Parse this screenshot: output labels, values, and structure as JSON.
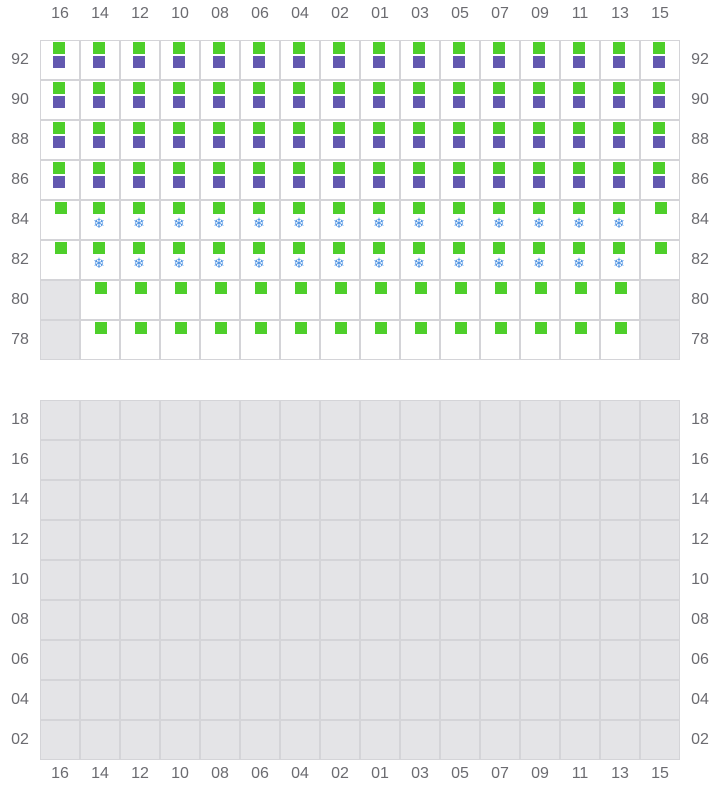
{
  "columns": [
    "16",
    "14",
    "12",
    "10",
    "08",
    "06",
    "04",
    "02",
    "01",
    "03",
    "05",
    "07",
    "09",
    "11",
    "13",
    "15"
  ],
  "colors": {
    "green": "#4ecf2a",
    "purple": "#6359b0",
    "unavailable": "#e4e4e7",
    "snow": "#4a90e2"
  },
  "icons": {
    "snow": "snowflake-icon",
    "snow_glyph": "❄"
  },
  "top_section": {
    "rows": [
      {
        "label": "92",
        "cells": [
          "gp",
          "gp",
          "gp",
          "gp",
          "gp",
          "gp",
          "gp",
          "gp",
          "gp",
          "gp",
          "gp",
          "gp",
          "gp",
          "gp",
          "gp",
          "gp"
        ]
      },
      {
        "label": "90",
        "cells": [
          "gp",
          "gp",
          "gp",
          "gp",
          "gp",
          "gp",
          "gp",
          "gp",
          "gp",
          "gp",
          "gp",
          "gp",
          "gp",
          "gp",
          "gp",
          "gp"
        ]
      },
      {
        "label": "88",
        "cells": [
          "gp",
          "gp",
          "gp",
          "gp",
          "gp",
          "gp",
          "gp",
          "gp",
          "gp",
          "gp",
          "gp",
          "gp",
          "gp",
          "gp",
          "gp",
          "gp"
        ]
      },
      {
        "label": "86",
        "cells": [
          "gp",
          "gp",
          "gp",
          "gp",
          "gp",
          "gp",
          "gp",
          "gp",
          "gp",
          "gp",
          "gp",
          "gp",
          "gp",
          "gp",
          "gp",
          "gp"
        ]
      },
      {
        "label": "84",
        "cells": [
          "g",
          "gs",
          "gs",
          "gs",
          "gs",
          "gs",
          "gs",
          "gs",
          "gs",
          "gs",
          "gs",
          "gs",
          "gs",
          "gs",
          "gs",
          "g"
        ]
      },
      {
        "label": "82",
        "cells": [
          "g",
          "gs",
          "gs",
          "gs",
          "gs",
          "gs",
          "gs",
          "gs",
          "gs",
          "gs",
          "gs",
          "gs",
          "gs",
          "gs",
          "gs",
          "g"
        ]
      },
      {
        "label": "80",
        "cells": [
          "na",
          "g",
          "g",
          "g",
          "g",
          "g",
          "g",
          "g",
          "g",
          "g",
          "g",
          "g",
          "g",
          "g",
          "g",
          "na"
        ]
      },
      {
        "label": "78",
        "cells": [
          "na",
          "g",
          "g",
          "g",
          "g",
          "g",
          "g",
          "g",
          "g",
          "g",
          "g",
          "g",
          "g",
          "g",
          "g",
          "na"
        ]
      }
    ]
  },
  "bottom_section": {
    "rows": [
      "18",
      "16",
      "14",
      "12",
      "10",
      "08",
      "06",
      "04",
      "02"
    ],
    "cell_state": "na"
  }
}
